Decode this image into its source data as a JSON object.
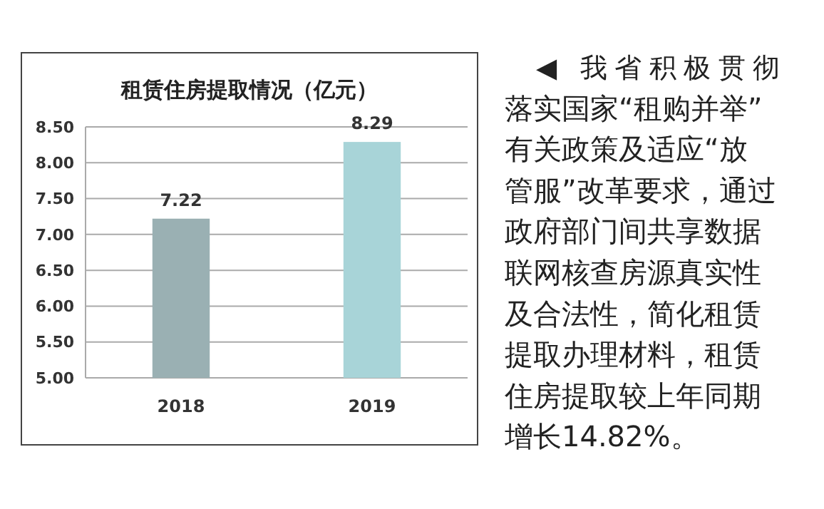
{
  "chart_data": {
    "type": "bar",
    "title": "租赁住房提取情况（亿元）",
    "categories": [
      "2018",
      "2019"
    ],
    "values": [
      7.22,
      8.29
    ],
    "colors": [
      "#9ab0b3",
      "#a8d4d8"
    ],
    "ylim": [
      5,
      8.5
    ],
    "yticks": [
      {
        "value": 5,
        "label": "5.00"
      },
      {
        "value": 5.5,
        "label": "5.50"
      },
      {
        "value": 6,
        "label": "6.00"
      },
      {
        "value": 6.5,
        "label": "6.50"
      },
      {
        "value": 7,
        "label": "7.00"
      },
      {
        "value": 7.5,
        "label": "7.50"
      },
      {
        "value": 8,
        "label": "8.00"
      },
      {
        "value": 8.5,
        "label": "8.50"
      }
    ],
    "grid": "y",
    "data_labels": true,
    "annotations": [
      "◀ 我省积极贯彻",
      "落实国家“租购并举”",
      "有关政策及适应“放",
      "管服”改革要求，通过",
      "政府部门间共享数据",
      "联网核查房源真实性",
      "及合法性，简化租赁",
      "提取办理材料，租赁",
      "住房提取较上年同期",
      "增长14.82%。"
    ]
  }
}
